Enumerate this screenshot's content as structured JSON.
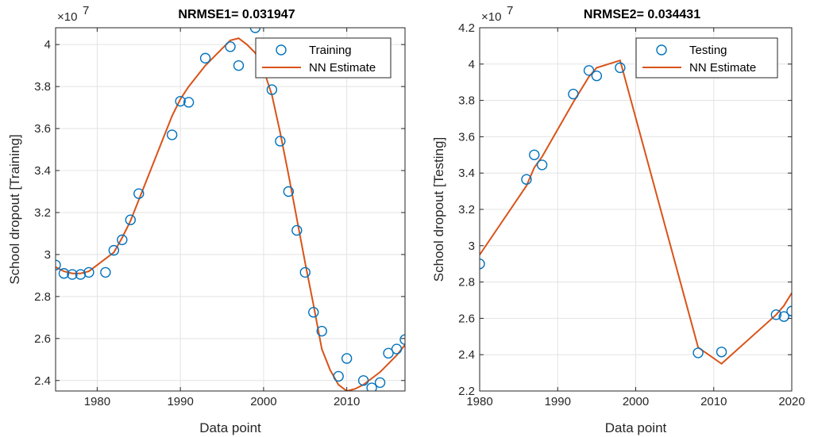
{
  "chart_data": [
    {
      "type": "line",
      "title": "NRMSE1= 0.031947",
      "xlabel": "Data point",
      "ylabel": "School dropout [Training]",
      "y_exponent_label": "×10",
      "y_exponent_power": "7",
      "xlim": [
        1975,
        2017
      ],
      "ylim": [
        2.35,
        4.08
      ],
      "xticks": [
        1980,
        1990,
        2000,
        2010
      ],
      "xtick_labels": [
        "1980",
        "1990",
        "2000",
        "2010"
      ],
      "yticks": [
        2.4,
        2.6,
        2.8,
        3.0,
        3.2,
        3.4,
        3.6,
        3.8,
        4.0
      ],
      "ytick_labels": [
        "2.4",
        "2.6",
        "2.8",
        "3",
        "3.2",
        "3.4",
        "3.6",
        "3.8",
        "4"
      ],
      "grid": true,
      "legend_position": "top-right",
      "series": [
        {
          "name": "Training",
          "kind": "markers",
          "color": "#0072BD",
          "x": [
            1975,
            1976,
            1977,
            1978,
            1979,
            1981,
            1982,
            1983,
            1984,
            1985,
            1989,
            1990,
            1991,
            1993,
            1996,
            1997,
            1999,
            2001,
            2002,
            2003,
            2004,
            2005,
            2006,
            2007,
            2009,
            2010,
            2012,
            2013,
            2014,
            2015,
            2016,
            2017
          ],
          "y": [
            2.95,
            2.91,
            2.905,
            2.905,
            2.915,
            2.915,
            3.02,
            3.07,
            3.165,
            3.29,
            3.57,
            3.73,
            3.725,
            3.935,
            3.99,
            3.9,
            4.08,
            3.785,
            3.54,
            3.3,
            3.115,
            2.915,
            2.725,
            2.635,
            2.42,
            2.505,
            2.4,
            2.365,
            2.39,
            2.53,
            2.55,
            2.595
          ]
        },
        {
          "name": "NN Estimate",
          "kind": "line",
          "color": "#D95319",
          "x": [
            1975,
            1976,
            1977,
            1978,
            1979,
            1980,
            1981,
            1982,
            1983,
            1984,
            1985,
            1986,
            1987,
            1988,
            1989,
            1990,
            1991,
            1992,
            1993,
            1994,
            1995,
            1996,
            1997,
            1998,
            1999,
            2000,
            2001,
            2002,
            2003,
            2004,
            2005,
            2006,
            2007,
            2008,
            2009,
            2010,
            2011,
            2012,
            2013,
            2014,
            2015,
            2016,
            2017
          ],
          "y": [
            2.94,
            2.92,
            2.91,
            2.91,
            2.92,
            2.95,
            2.98,
            3.01,
            3.08,
            3.16,
            3.26,
            3.36,
            3.46,
            3.56,
            3.66,
            3.74,
            3.8,
            3.85,
            3.9,
            3.94,
            3.98,
            4.02,
            4.03,
            4.0,
            3.96,
            3.88,
            3.76,
            3.58,
            3.38,
            3.17,
            2.96,
            2.76,
            2.55,
            2.45,
            2.38,
            2.35,
            2.36,
            2.38,
            2.41,
            2.44,
            2.48,
            2.52,
            2.57
          ]
        }
      ]
    },
    {
      "type": "line",
      "title": "NRMSE2= 0.034431",
      "xlabel": "Data point",
      "ylabel": "School dropout [Testing]",
      "y_exponent_label": "×10",
      "y_exponent_power": "7",
      "xlim": [
        1980,
        2020
      ],
      "ylim": [
        2.2,
        4.2
      ],
      "xticks": [
        1980,
        1990,
        2000,
        2010,
        2020
      ],
      "xtick_labels": [
        "1980",
        "1990",
        "2000",
        "2010",
        "2020"
      ],
      "yticks": [
        2.2,
        2.4,
        2.6,
        2.8,
        3.0,
        3.2,
        3.4,
        3.6,
        3.8,
        4.0,
        4.2
      ],
      "ytick_labels": [
        "2.2",
        "2.4",
        "2.6",
        "2.8",
        "3",
        "3.2",
        "3.4",
        "3.6",
        "3.8",
        "4",
        "4.2"
      ],
      "grid": true,
      "legend_position": "top-right",
      "series": [
        {
          "name": "Testing",
          "kind": "markers",
          "color": "#0072BD",
          "x": [
            1980,
            1986,
            1987,
            1988,
            1992,
            1994,
            1995,
            1998,
            2008,
            2011,
            2018,
            2019,
            2020
          ],
          "y": [
            2.9,
            3.365,
            3.5,
            3.445,
            3.835,
            3.965,
            3.935,
            3.98,
            2.41,
            2.415,
            2.62,
            2.61,
            2.64
          ]
        },
        {
          "name": "NN Estimate",
          "kind": "line",
          "color": "#D95319",
          "x": [
            1980,
            1986,
            1987,
            1988,
            1992,
            1994,
            1995,
            1998,
            2008,
            2011,
            2018,
            2019,
            2020
          ],
          "y": [
            2.95,
            3.33,
            3.43,
            3.49,
            3.79,
            3.93,
            3.98,
            4.02,
            2.44,
            2.35,
            2.62,
            2.67,
            2.74
          ]
        }
      ]
    }
  ]
}
